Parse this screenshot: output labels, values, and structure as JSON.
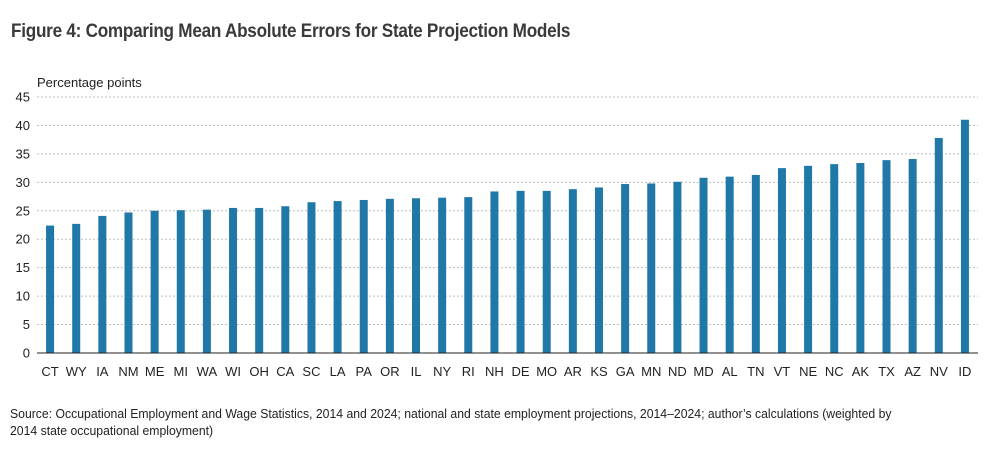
{
  "title": "Figure 4: Comparing Mean Absolute Errors for State Projection Models",
  "source": "Source: Occupational Employment and Wage Statistics, 2014 and 2024; national and state employment projections, 2014–2024; author’s calculations (weighted by 2014 state occupational employment)",
  "colors": {
    "bar": "#1f78a8",
    "grid": "#bdbdbd",
    "axis": "#222222"
  },
  "chart_data": {
    "type": "bar",
    "title": "Figure 4: Comparing Mean Absolute Errors for State Projection Models",
    "ylabel": "Percentage points",
    "xlabel": "",
    "ylim": [
      0,
      45
    ],
    "yticks": [
      0,
      5,
      10,
      15,
      20,
      25,
      30,
      35,
      40,
      45
    ],
    "grid": "horizontal dashed",
    "categories": [
      "CT",
      "WY",
      "IA",
      "NM",
      "ME",
      "MI",
      "WA",
      "WI",
      "OH",
      "CA",
      "SC",
      "LA",
      "PA",
      "OR",
      "IL",
      "NY",
      "RI",
      "NH",
      "DE",
      "MO",
      "AR",
      "KS",
      "GA",
      "MN",
      "ND",
      "MD",
      "AL",
      "TN",
      "VT",
      "NE",
      "NC",
      "AK",
      "TX",
      "AZ",
      "NV",
      "ID"
    ],
    "values": [
      22.4,
      22.7,
      24.1,
      24.7,
      25.0,
      25.1,
      25.2,
      25.5,
      25.5,
      25.8,
      26.5,
      26.7,
      26.9,
      27.1,
      27.2,
      27.3,
      27.4,
      28.4,
      28.5,
      28.5,
      28.8,
      29.1,
      29.7,
      29.8,
      30.1,
      30.8,
      31.0,
      31.3,
      32.5,
      32.9,
      33.2,
      33.4,
      33.9,
      34.1,
      37.8,
      41.0
    ]
  }
}
